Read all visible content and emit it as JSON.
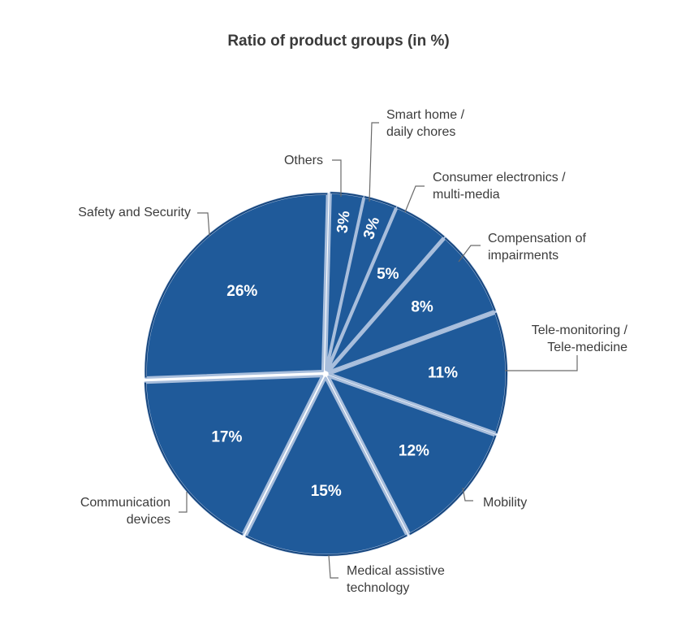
{
  "chart_data": {
    "type": "pie",
    "title": "Ratio of product groups (in %)",
    "unit": "%",
    "colors": {
      "slice": "#1f5a9a",
      "edge": "#a8bedc",
      "outline": "#16467e",
      "label": "#ffffff"
    },
    "slices": [
      {
        "category": [
          "Others"
        ],
        "value": 3,
        "value_label": "3%"
      },
      {
        "category": [
          "Smart home /",
          "daily chores"
        ],
        "value": 3,
        "value_label": "3%"
      },
      {
        "category": [
          "Consumer electronics /",
          "multi-media"
        ],
        "value": 5,
        "value_label": "5%"
      },
      {
        "category": [
          "Compensation of",
          "impairments"
        ],
        "value": 8,
        "value_label": "8%"
      },
      {
        "category": [
          "Tele-monitoring /",
          "Tele-medicine"
        ],
        "value": 11,
        "value_label": "11%"
      },
      {
        "category": [
          "Mobility"
        ],
        "value": 12,
        "value_label": "12%"
      },
      {
        "category": [
          "Medical assistive",
          "technology"
        ],
        "value": 15,
        "value_label": "15%"
      },
      {
        "category": [
          "Communication",
          "devices"
        ],
        "value": 17,
        "value_label": "17%"
      },
      {
        "category": [
          "Safety and Security"
        ],
        "value": 26,
        "value_label": "26%"
      }
    ]
  }
}
